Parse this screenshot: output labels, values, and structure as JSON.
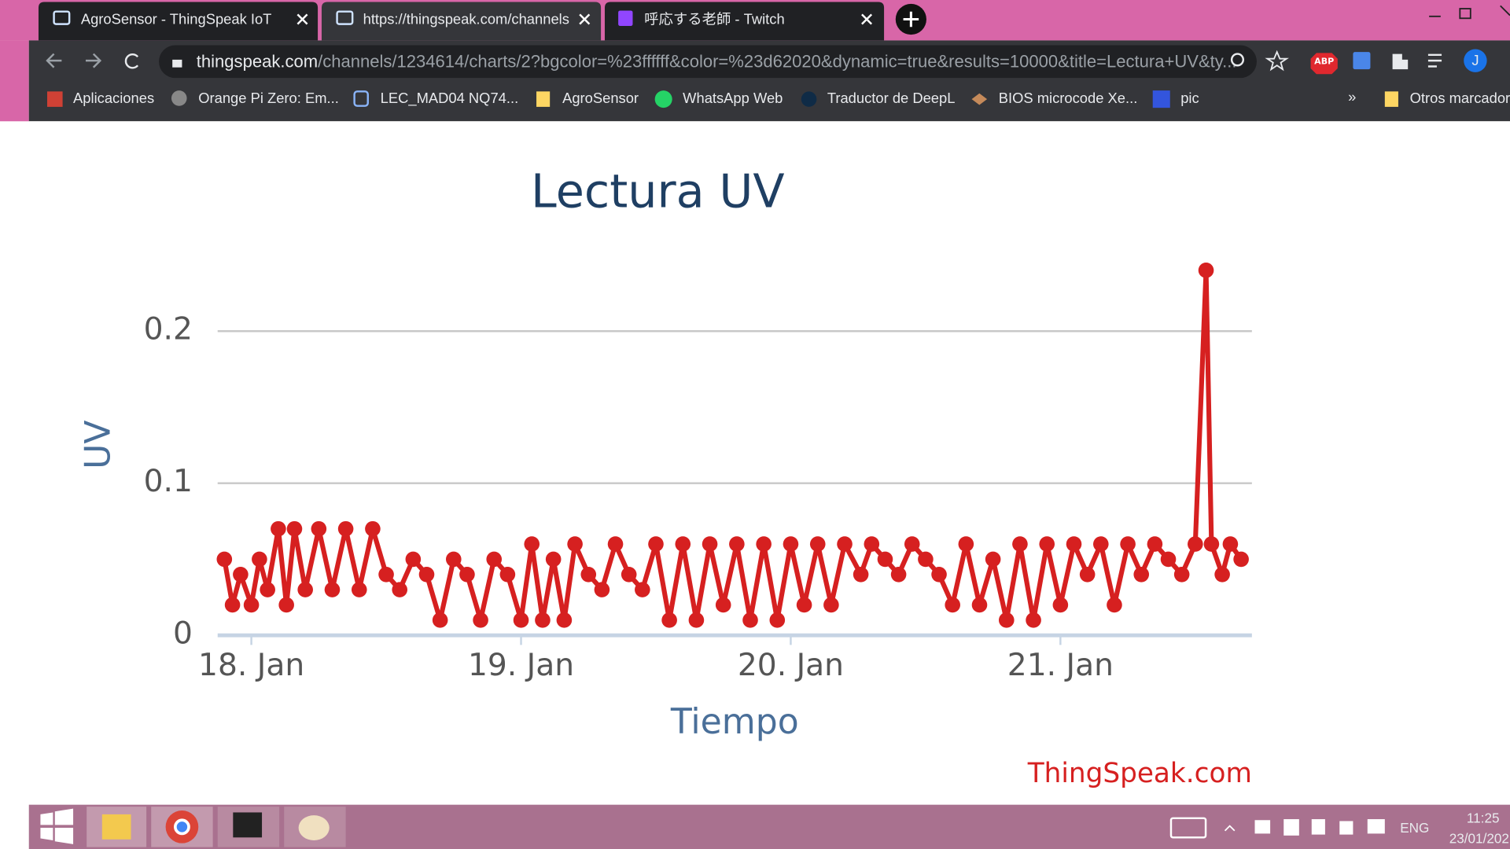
{
  "browser": {
    "tabs": [
      "AgroSensor - ThingSpeak IoT",
      "https://thingspeak.com/channels",
      "呼応する老師 - Twitch"
    ],
    "url_host": "thingspeak.com",
    "url_path": "/channels/1234614/charts/2?bgcolor=%23ffffff&color=%23d62020&dynamic=true&results=10000&title=Lectura+UV&ty...",
    "bookmarks": [
      "Aplicaciones",
      "Orange Pi Zero: Em...",
      "LEC_MAD04 NQ74...",
      "AgroSensor",
      "WhatsApp Web",
      "Traductor de DeepL",
      "BIOS microcode Xe...",
      "pic"
    ],
    "bookmarks_overflow": "»",
    "other_bookmarks": "Otros marcador",
    "profile": "J",
    "abp": "ABP"
  },
  "chart_data": {
    "type": "line",
    "title": "Lectura UV",
    "xlabel": "Tiempo",
    "ylabel": "UV",
    "credit": "ThingSpeak.com",
    "color": "#d62020",
    "x": [
      17.9,
      17.93,
      17.96,
      18.0,
      18.03,
      18.06,
      18.1,
      18.13,
      18.16,
      18.2,
      18.25,
      18.3,
      18.35,
      18.4,
      18.45,
      18.5,
      18.55,
      18.6,
      18.65,
      18.7,
      18.75,
      18.8,
      18.85,
      18.9,
      18.95,
      19.0,
      19.04,
      19.08,
      19.12,
      19.16,
      19.2,
      19.25,
      19.3,
      19.35,
      19.4,
      19.45,
      19.5,
      19.55,
      19.6,
      19.65,
      19.7,
      19.75,
      19.8,
      19.85,
      19.9,
      19.95,
      20.0,
      20.05,
      20.1,
      20.15,
      20.2,
      20.26,
      20.3,
      20.35,
      20.4,
      20.45,
      20.5,
      20.55,
      20.6,
      20.65,
      20.7,
      20.75,
      20.8,
      20.85,
      20.9,
      20.95,
      21.0,
      21.05,
      21.1,
      21.15,
      21.2,
      21.25,
      21.3,
      21.35,
      21.4,
      21.45,
      21.5,
      21.54,
      21.56,
      21.6,
      21.63,
      21.67
    ],
    "values": [
      0.05,
      0.02,
      0.04,
      0.02,
      0.05,
      0.03,
      0.07,
      0.02,
      0.07,
      0.03,
      0.07,
      0.03,
      0.07,
      0.03,
      0.07,
      0.04,
      0.03,
      0.05,
      0.04,
      0.01,
      0.05,
      0.04,
      0.01,
      0.05,
      0.04,
      0.01,
      0.06,
      0.01,
      0.05,
      0.01,
      0.06,
      0.04,
      0.03,
      0.06,
      0.04,
      0.03,
      0.06,
      0.01,
      0.06,
      0.01,
      0.06,
      0.02,
      0.06,
      0.01,
      0.06,
      0.01,
      0.06,
      0.02,
      0.06,
      0.02,
      0.06,
      0.04,
      0.06,
      0.05,
      0.04,
      0.06,
      0.05,
      0.04,
      0.02,
      0.06,
      0.02,
      0.05,
      0.01,
      0.06,
      0.01,
      0.06,
      0.02,
      0.06,
      0.04,
      0.06,
      0.02,
      0.06,
      0.04,
      0.06,
      0.05,
      0.04,
      0.06,
      0.24,
      0.06,
      0.04,
      0.06,
      0.05
    ],
    "xlim": [
      17.875,
      21.71
    ],
    "xticks": [
      {
        "value": 18,
        "label": "18. Jan"
      },
      {
        "value": 19,
        "label": "19. Jan"
      },
      {
        "value": 20,
        "label": "20. Jan"
      },
      {
        "value": 21,
        "label": "21. Jan"
      }
    ],
    "ylim": [
      0,
      0.25
    ],
    "yticks": [
      0,
      0.1,
      0.2
    ],
    "grid": true
  },
  "taskbar": {
    "language": "ENG",
    "time": "11:25",
    "date": "23/01/202"
  }
}
